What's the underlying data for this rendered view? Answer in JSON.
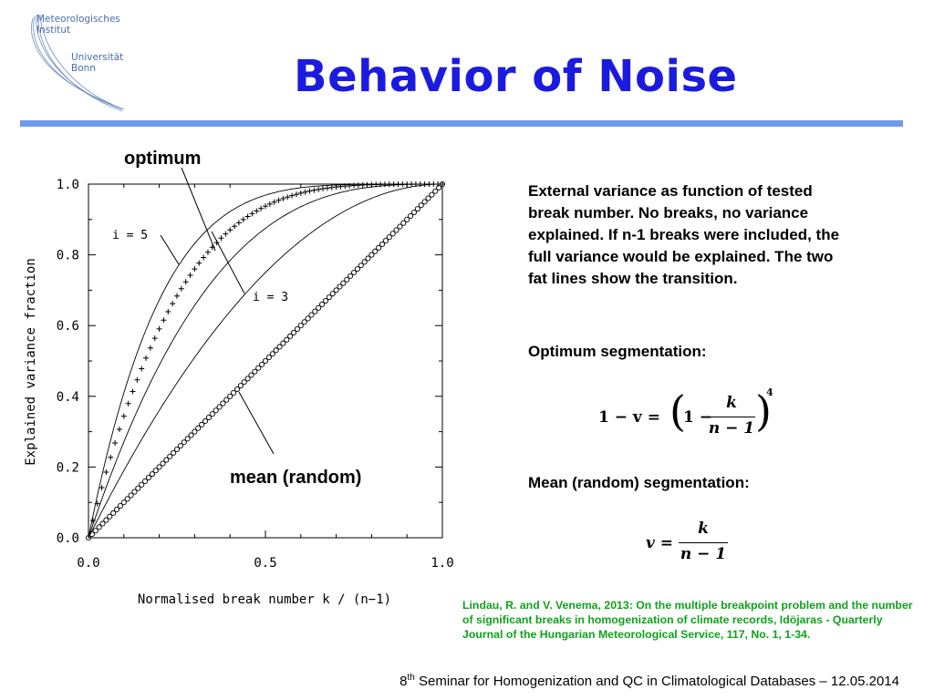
{
  "logo": {
    "line1": "Meteorologisches",
    "line2": "Institut",
    "line3": "Universität",
    "line4": "Bonn"
  },
  "title": "Behavior of Noise",
  "colors": {
    "title": "#1b1be0",
    "rule": "#6d9cec",
    "reference": "#0ea31a",
    "logo": "#4a6fa8"
  },
  "chart_data": {
    "type": "line",
    "xlabel": "Normalised break number k / (n−1)",
    "ylabel": "Explained variance fraction",
    "xlim": [
      0,
      1
    ],
    "ylim": [
      0,
      1
    ],
    "xticks": [
      "0.0",
      "0.5",
      "1.0"
    ],
    "yticks": [
      "0.0",
      "0.2",
      "0.4",
      "0.6",
      "0.8",
      "1.0"
    ],
    "grid": false,
    "annotations": {
      "optimum": "optimum",
      "i5": "i = 5",
      "i3": "i = 3",
      "mean": "mean (random)"
    },
    "series": [
      {
        "formula": "1-(1-x)^5",
        "style": "thin-line",
        "x": [
          0,
          0.05,
          0.1,
          0.15,
          0.2,
          0.25,
          0.3,
          0.4,
          0.5,
          0.6,
          0.7,
          0.8,
          0.9,
          1.0
        ],
        "y": [
          0,
          0.226,
          0.41,
          0.556,
          0.672,
          0.763,
          0.832,
          0.922,
          0.969,
          0.99,
          0.998,
          1.0,
          1.0,
          1.0
        ]
      },
      {
        "formula": "1-(1-x)^4",
        "style": "plus-markers",
        "x": [
          0,
          0.05,
          0.1,
          0.15,
          0.2,
          0.25,
          0.3,
          0.4,
          0.5,
          0.6,
          0.7,
          0.8,
          0.9,
          1.0
        ],
        "y": [
          0,
          0.185,
          0.344,
          0.478,
          0.59,
          0.684,
          0.76,
          0.87,
          0.938,
          0.974,
          0.992,
          0.998,
          1.0,
          1.0
        ]
      },
      {
        "formula": "1-(1-x)^3",
        "style": "thin-line",
        "x": [
          0,
          0.05,
          0.1,
          0.15,
          0.2,
          0.25,
          0.3,
          0.4,
          0.5,
          0.6,
          0.7,
          0.8,
          0.9,
          1.0
        ],
        "y": [
          0,
          0.143,
          0.271,
          0.386,
          0.488,
          0.578,
          0.657,
          0.784,
          0.875,
          0.936,
          0.973,
          0.992,
          0.999,
          1.0
        ]
      },
      {
        "formula": "1-(1-x)^2",
        "style": "thin-line",
        "x": [
          0,
          0.05,
          0.1,
          0.15,
          0.2,
          0.25,
          0.3,
          0.4,
          0.5,
          0.6,
          0.7,
          0.8,
          0.9,
          1.0
        ],
        "y": [
          0,
          0.098,
          0.19,
          0.278,
          0.36,
          0.438,
          0.51,
          0.64,
          0.75,
          0.84,
          0.91,
          0.96,
          0.99,
          1.0
        ]
      },
      {
        "formula": "x",
        "style": "circle-markers",
        "x": [
          0,
          0.1,
          0.2,
          0.3,
          0.4,
          0.5,
          0.6,
          0.7,
          0.8,
          0.9,
          1.0
        ],
        "y": [
          0,
          0.1,
          0.2,
          0.3,
          0.4,
          0.5,
          0.6,
          0.7,
          0.8,
          0.9,
          1.0
        ]
      }
    ]
  },
  "description": "External variance as function of tested break number. No breaks, no variance explained. If n-1 breaks were included, the full variance would be explained. The two fat lines show the transition.",
  "optimum_title": "Optimum segmentation:",
  "optimum_formula": {
    "lhs": "1 − v =",
    "one": "1 −",
    "num": "k",
    "den": "n − 1",
    "exp": "4"
  },
  "mean_title": "Mean (random) segmentation:",
  "mean_formula": {
    "lhs": "v =",
    "num": "k",
    "den": "n − 1"
  },
  "reference": "Lindau, R. and V. Venema, 2013: On the multiple breakpoint problem and the number of significant breaks in homogenization of climate records, Idöjaras - Quarterly Journal of the Hungarian Meteorological Service, 117, No. 1, 1-34.",
  "footer": {
    "ordinal": "8",
    "sup": "th",
    "text": " Seminar for Homogenization and QC in Climatological Databases – 12.05.2014"
  }
}
